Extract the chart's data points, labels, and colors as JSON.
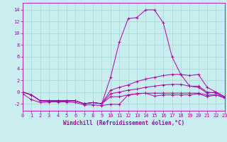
{
  "xlabel": "Windchill (Refroidissement éolien,°C)",
  "background_color": "#c8eef0",
  "grid_color": "#b0d8d8",
  "line_color": "#aa00aa",
  "spine_color": "#aa00aa",
  "x_ticks": [
    0,
    1,
    2,
    3,
    4,
    5,
    6,
    7,
    8,
    9,
    10,
    11,
    12,
    13,
    14,
    15,
    16,
    17,
    18,
    19,
    20,
    21,
    22,
    23
  ],
  "y_ticks": [
    -2,
    0,
    2,
    4,
    6,
    8,
    10,
    12,
    14
  ],
  "xlim": [
    0,
    23
  ],
  "ylim": [
    -3.2,
    15.2
  ],
  "lines": [
    [
      0,
      -0.3,
      1,
      -1.3,
      2,
      -1.8,
      3,
      -1.7,
      4,
      -1.7,
      5,
      -1.7,
      6,
      -1.8,
      7,
      -2.2,
      8,
      -2.2,
      9,
      -2.3,
      10,
      -2.1,
      11,
      -2.1,
      12,
      -0.5,
      13,
      -0.3,
      14,
      -0.2,
      15,
      -0.7,
      16,
      -0.5,
      17,
      -0.5,
      18,
      -0.5,
      19,
      -0.5,
      20,
      -0.3,
      21,
      -0.8,
      22,
      -0.5,
      23,
      -1.0
    ],
    [
      0,
      0,
      1,
      -0.5,
      2,
      -1.5,
      3,
      -1.5,
      4,
      -1.5,
      5,
      -1.5,
      6,
      -1.5,
      7,
      -2.0,
      8,
      -1.8,
      9,
      -2.0,
      10,
      2.5,
      11,
      8.5,
      12,
      12.5,
      13,
      12.7,
      14,
      14.0,
      15,
      14.0,
      16,
      11.8,
      17,
      6.0,
      18,
      3.0,
      19,
      1.0,
      20,
      0.8,
      21,
      -0.2,
      22,
      0.0,
      23,
      -0.8
    ],
    [
      0,
      0,
      1,
      -0.5,
      2,
      -1.5,
      3,
      -1.5,
      4,
      -1.5,
      5,
      -1.5,
      6,
      -1.5,
      7,
      -2.0,
      8,
      -1.8,
      9,
      -2.0,
      10,
      0.3,
      11,
      0.8,
      12,
      1.2,
      13,
      1.8,
      14,
      2.2,
      15,
      2.5,
      16,
      2.8,
      17,
      3.0,
      18,
      3.0,
      19,
      2.8,
      20,
      3.0,
      21,
      0.8,
      22,
      0.0,
      23,
      -0.8
    ],
    [
      0,
      0,
      1,
      -0.5,
      2,
      -1.5,
      3,
      -1.5,
      4,
      -1.5,
      5,
      -1.5,
      6,
      -1.5,
      7,
      -2.0,
      8,
      -1.8,
      9,
      -2.0,
      10,
      -0.3,
      11,
      0.0,
      12,
      0.3,
      13,
      0.5,
      14,
      0.8,
      15,
      1.0,
      16,
      1.2,
      17,
      1.3,
      18,
      1.3,
      19,
      1.0,
      20,
      1.0,
      21,
      0.0,
      22,
      -0.2,
      23,
      -1.0
    ],
    [
      0,
      0,
      1,
      -0.5,
      2,
      -1.5,
      3,
      -1.5,
      4,
      -1.5,
      5,
      -1.5,
      6,
      -1.5,
      7,
      -2.0,
      8,
      -1.8,
      9,
      -2.0,
      10,
      -0.8,
      11,
      -0.8,
      12,
      -0.5,
      13,
      -0.3,
      14,
      -0.2,
      15,
      -0.2,
      16,
      -0.2,
      17,
      -0.2,
      18,
      -0.2,
      19,
      -0.2,
      20,
      -0.2,
      21,
      -0.5,
      22,
      -0.5,
      23,
      -1.0
    ]
  ],
  "xlabel_fontsize": 5.5,
  "tick_fontsize": 5,
  "linewidth": 0.7,
  "markersize": 2.5,
  "figsize": [
    3.2,
    2.0
  ],
  "dpi": 100
}
